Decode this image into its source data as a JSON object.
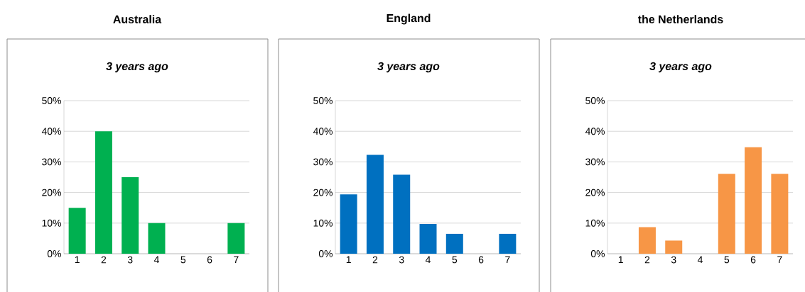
{
  "chart_data": [
    {
      "type": "bar",
      "title": "Australia",
      "subtitle": "3 years ago",
      "categories": [
        "1",
        "2",
        "3",
        "4",
        "5",
        "6",
        "7"
      ],
      "values": [
        15,
        40,
        25,
        10,
        0,
        0,
        10
      ],
      "color": "#00b050",
      "ylim": [
        0,
        50
      ],
      "yticks": [
        {
          "value": 0,
          "label": "0%"
        },
        {
          "value": 10,
          "label": "10%"
        },
        {
          "value": 20,
          "label": "20%"
        },
        {
          "value": 30,
          "label": "30%"
        },
        {
          "value": 40,
          "label": "40%"
        },
        {
          "value": 50,
          "label": "50%"
        }
      ],
      "grid": "y"
    },
    {
      "type": "bar",
      "title": "England",
      "subtitle": "3 years ago",
      "categories": [
        "1",
        "2",
        "3",
        "4",
        "5",
        "6",
        "7"
      ],
      "values": [
        19.4,
        32.3,
        25.8,
        9.7,
        6.5,
        0,
        6.5
      ],
      "color": "#0070c0",
      "ylim": [
        0,
        50
      ],
      "yticks": [
        {
          "value": 0,
          "label": "0%"
        },
        {
          "value": 10,
          "label": "10%"
        },
        {
          "value": 20,
          "label": "20%"
        },
        {
          "value": 30,
          "label": "30%"
        },
        {
          "value": 40,
          "label": "40%"
        },
        {
          "value": 50,
          "label": "50%"
        }
      ],
      "grid": "y"
    },
    {
      "type": "bar",
      "title": "the Netherlands",
      "subtitle": "3 years ago",
      "categories": [
        "1",
        "2",
        "3",
        "4",
        "5",
        "6",
        "7"
      ],
      "values": [
        0,
        8.7,
        4.3,
        0,
        26.1,
        34.8,
        26.1
      ],
      "color": "#f79646",
      "ylim": [
        0,
        50
      ],
      "yticks": [
        {
          "value": 0,
          "label": "0%"
        },
        {
          "value": 10,
          "label": "10%"
        },
        {
          "value": 20,
          "label": "20%"
        },
        {
          "value": 30,
          "label": "30%"
        },
        {
          "value": 40,
          "label": "40%"
        },
        {
          "value": 50,
          "label": "50%"
        }
      ],
      "grid": "y"
    }
  ]
}
